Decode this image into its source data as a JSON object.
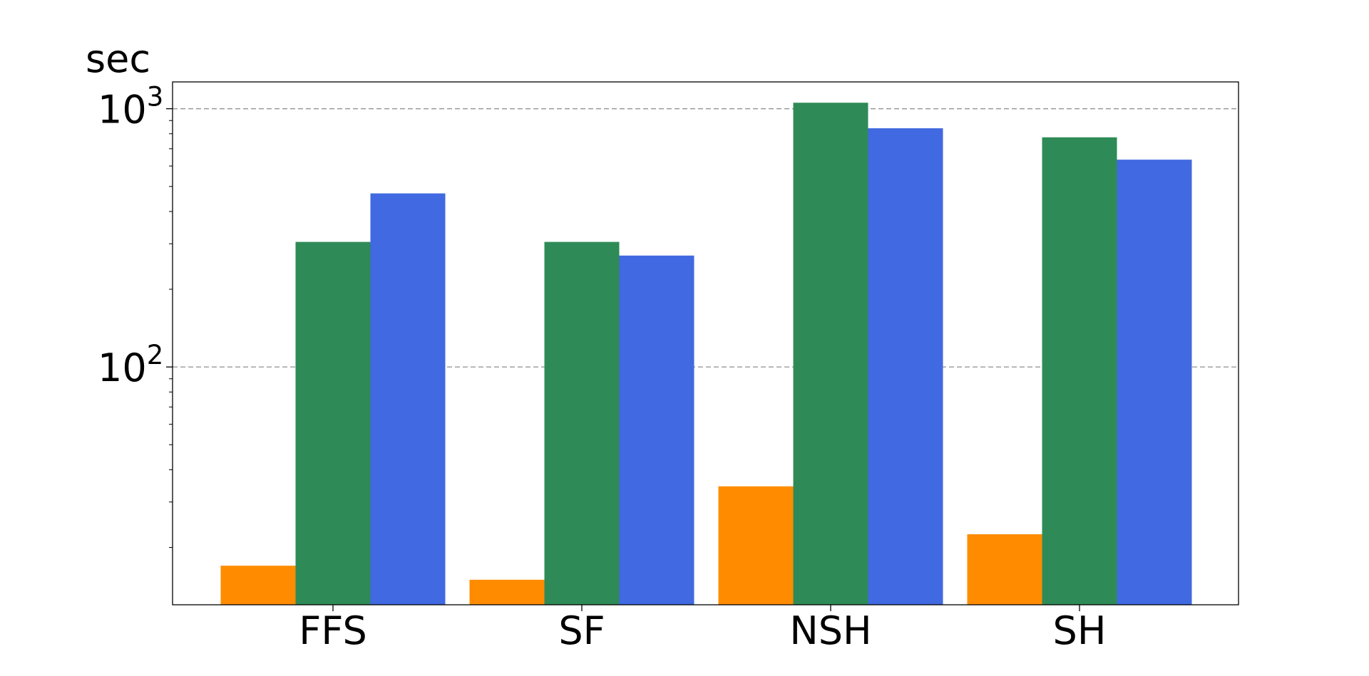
{
  "chart_data": {
    "type": "bar",
    "title": "",
    "xlabel": "",
    "ylabel": "sec",
    "y_scale": "log",
    "ylim": [
      12,
      1270
    ],
    "y_ticks": [
      {
        "value": 100,
        "label": "10",
        "exp": "2"
      },
      {
        "value": 1000,
        "label": "10",
        "exp": "3"
      }
    ],
    "grid": "y-major dashed",
    "legend": "none",
    "categories": [
      "FFS",
      "SF",
      "NSH",
      "SH"
    ],
    "series": [
      {
        "color": "#ff8c00",
        "values": [
          17,
          15,
          34.5,
          22.5
        ]
      },
      {
        "color": "#2e8b57",
        "values": [
          305,
          305,
          1055,
          775
        ]
      },
      {
        "color": "#4169e1",
        "values": [
          470,
          270,
          840,
          635
        ]
      }
    ]
  }
}
